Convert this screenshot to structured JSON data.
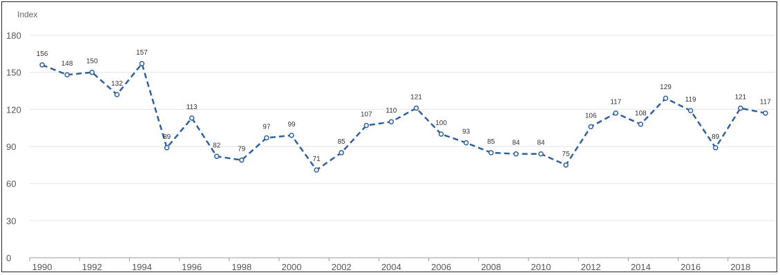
{
  "chart_data": {
    "type": "line",
    "ylabel": "Index",
    "xlabel": "",
    "ylim": [
      0,
      180
    ],
    "yticks": [
      0,
      30,
      60,
      90,
      120,
      150,
      180
    ],
    "xlim": [
      1990,
      2019
    ],
    "xticks": [
      1990,
      1992,
      1994,
      1996,
      1998,
      2000,
      2002,
      2004,
      2006,
      2008,
      2010,
      2012,
      2014,
      2016,
      2018
    ],
    "grid": "horizontal",
    "legend": "none",
    "x": [
      1990,
      1991,
      1992,
      1993,
      1994,
      1995,
      1996,
      1997,
      1998,
      1999,
      2000,
      2001,
      2002,
      2003,
      2004,
      2005,
      2006,
      2007,
      2008,
      2009,
      2010,
      2011,
      2012,
      2013,
      2014,
      2015,
      2016,
      2017,
      2018,
      2019
    ],
    "series": [
      {
        "values": [
          156,
          148,
          150,
          132,
          157,
          89,
          113,
          82,
          79,
          97,
          99,
          71,
          85,
          107,
          110,
          121,
          100,
          93,
          85,
          84,
          84,
          75,
          106,
          117,
          108,
          129,
          119,
          89,
          121,
          117
        ],
        "labels": [
          "156",
          "148",
          "150",
          "132",
          "157",
          "89",
          "113",
          "82",
          "79",
          "97",
          "99",
          "71",
          "85",
          "107",
          "110",
          "121",
          "100",
          "93",
          "85",
          "84",
          "84",
          "75",
          "106",
          "117",
          "108",
          "129",
          "119",
          "89",
          "121",
          "117"
        ],
        "color": "#2e5f9e",
        "line_style": "dashed",
        "marker": "hollow-circle"
      }
    ]
  }
}
